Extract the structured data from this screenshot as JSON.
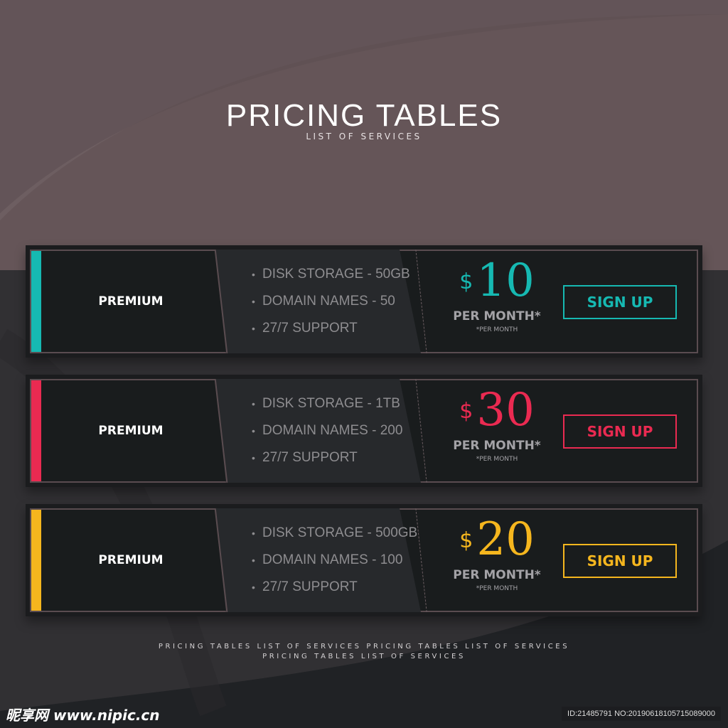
{
  "header": {
    "title": "PRICING TABLES",
    "subtitle": "LIST OF SERVICES"
  },
  "plans": [
    {
      "name": "PREMIUM",
      "features": [
        "DISK STORAGE - 50GB",
        "DOMAIN NAMES  - 50",
        "27/7 SUPPORT"
      ],
      "currency": "$",
      "price": "10",
      "per_month": "PER MONTH*",
      "per_month_note": "*PER   MONTH",
      "button": "SIGN UP",
      "color": "#16b9b2"
    },
    {
      "name": "PREMIUM",
      "features": [
        "DISK STORAGE - 1TB",
        "DOMAIN NAMES - 200",
        "27/7 SUPPORT"
      ],
      "currency": "$",
      "price": "30",
      "per_month": "PER MONTH*",
      "per_month_note": "*PER   MONTH",
      "button": "SIGN UP",
      "color": "#ea2a51"
    },
    {
      "name": "PREMIUM",
      "features": [
        "DISK STORAGE - 500GB",
        "DOMAIN NAMES - 100",
        "27/7 SUPPORT"
      ],
      "currency": "$",
      "price": "20",
      "per_month": "PER MONTH*",
      "per_month_note": "*PER   MONTH",
      "button": "SIGN UP",
      "color": "#f5b61e"
    }
  ],
  "footer": {
    "line1": "PRICING TABLES  LIST OF SERVICES PRICING TABLES  LIST OF SERVICES",
    "line2": "PRICING TABLES  LIST OF SERVICES"
  },
  "watermark": {
    "logo": "昵享网 www.nipic.cn",
    "id": "ID:21485791 NO:20190618105715089000"
  },
  "colors": {
    "background_top": "#655558",
    "background_bottom": "#232326"
  }
}
